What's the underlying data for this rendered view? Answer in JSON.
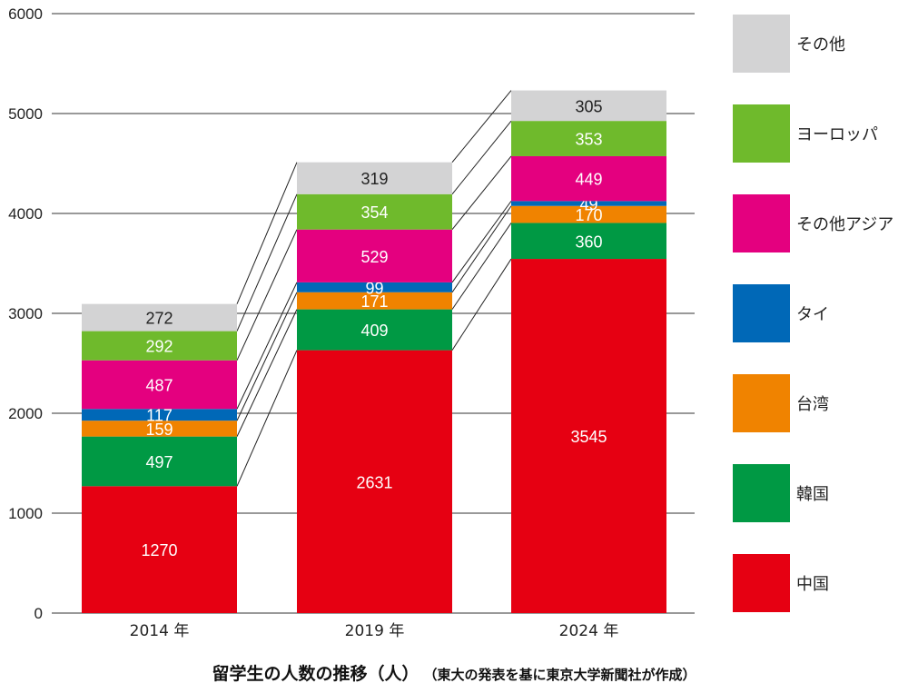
{
  "chart_data": {
    "type": "bar",
    "stacked": true,
    "categories": [
      "2014 年",
      "2019 年",
      "2024 年"
    ],
    "series": [
      {
        "name": "中国",
        "color": "#e60012",
        "label_color": "#ffffff",
        "values": [
          1270,
          2631,
          3545
        ]
      },
      {
        "name": "韓国",
        "color": "#009944",
        "label_color": "#ffffff",
        "values": [
          497,
          409,
          360
        ]
      },
      {
        "name": "台湾",
        "color": "#f08300",
        "label_color": "#ffffff",
        "values": [
          159,
          171,
          170
        ]
      },
      {
        "name": "タイ",
        "color": "#0068b7",
        "label_color": "#ffffff",
        "values": [
          117,
          99,
          49
        ]
      },
      {
        "name": "その他アジア",
        "color": "#e4007f",
        "label_color": "#ffffff",
        "values": [
          487,
          529,
          449
        ]
      },
      {
        "name": "ヨーロッパ",
        "color": "#6fba2c",
        "label_color": "#ffffff",
        "values": [
          292,
          354,
          353
        ]
      },
      {
        "name": "その他",
        "color": "#d3d3d4",
        "label_color": "#222222",
        "values": [
          272,
          319,
          305
        ]
      }
    ],
    "ylim": [
      0,
      6000
    ],
    "yticks": [
      0,
      1000,
      2000,
      3000,
      4000,
      5000,
      6000
    ],
    "grid": true,
    "legend_position": "right",
    "connector_lines": true,
    "title": "留学生の人数の推移（人）",
    "subtitle": "（東大の発表を基に東京大学新聞社が作成）"
  }
}
